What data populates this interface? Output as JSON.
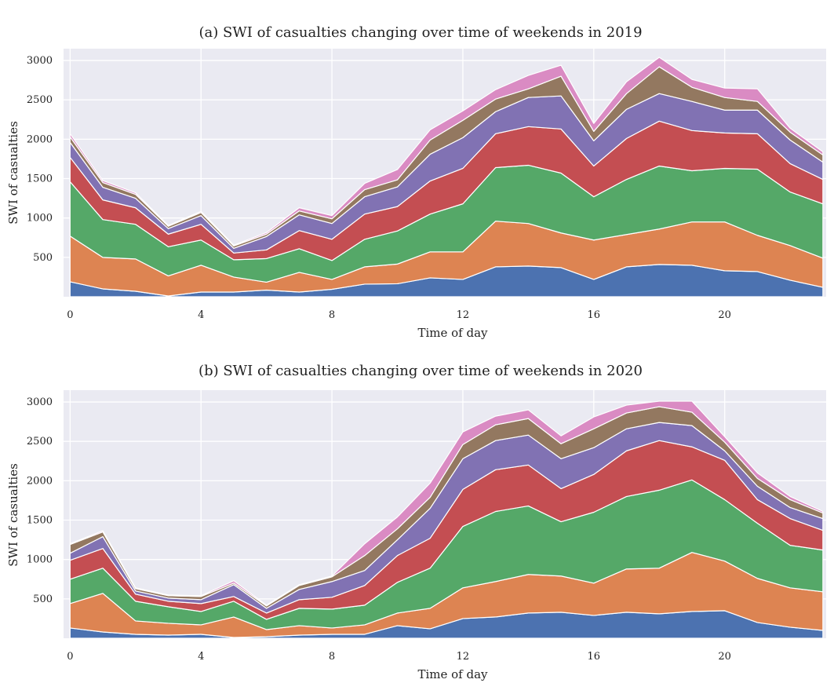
{
  "chart_data": [
    {
      "type": "area",
      "stacked": true,
      "title": "(a) SWI of casualties changing over time of weekends in 2019",
      "xlabel": "Time of day",
      "ylabel": "SWI of casualties",
      "xlim": [
        -0.2,
        23.1
      ],
      "ylim": [
        0,
        3150
      ],
      "xticks": [
        0,
        4,
        8,
        12,
        16,
        20
      ],
      "yticks": [
        500,
        1000,
        1500,
        2000,
        2500,
        3000
      ],
      "grid": true,
      "x": [
        0,
        1,
        2,
        3,
        4,
        5,
        6,
        7,
        8,
        9,
        10,
        11,
        12,
        13,
        14,
        15,
        16,
        17,
        18,
        19,
        20,
        21,
        22,
        23
      ],
      "series": [
        {
          "color": "#4c72b0",
          "values": [
            190,
            100,
            70,
            10,
            60,
            60,
            85,
            60,
            95,
            160,
            165,
            240,
            220,
            380,
            390,
            370,
            220,
            380,
            410,
            400,
            330,
            320,
            210,
            120
          ]
        },
        {
          "color": "#dd8452",
          "values": [
            580,
            400,
            410,
            255,
            340,
            190,
            100,
            250,
            125,
            220,
            250,
            330,
            350,
            580,
            540,
            440,
            500,
            410,
            450,
            550,
            620,
            460,
            440,
            370
          ]
        },
        {
          "color": "#55a868",
          "values": [
            690,
            480,
            440,
            370,
            320,
            220,
            300,
            300,
            240,
            350,
            420,
            480,
            610,
            680,
            740,
            760,
            550,
            700,
            800,
            650,
            680,
            840,
            680,
            690
          ]
        },
        {
          "color": "#c44e52",
          "values": [
            310,
            250,
            210,
            160,
            200,
            85,
            110,
            230,
            270,
            320,
            310,
            420,
            450,
            430,
            490,
            560,
            390,
            520,
            570,
            510,
            450,
            450,
            360,
            310
          ]
        },
        {
          "color": "#8172b3",
          "values": [
            190,
            160,
            120,
            70,
            110,
            60,
            170,
            200,
            200,
            220,
            250,
            340,
            390,
            280,
            370,
            420,
            320,
            370,
            350,
            370,
            290,
            300,
            300,
            220
          ]
        },
        {
          "color": "#937860",
          "values": [
            70,
            60,
            50,
            30,
            40,
            30,
            30,
            50,
            60,
            90,
            90,
            180,
            220,
            160,
            110,
            250,
            120,
            200,
            340,
            180,
            160,
            110,
            100,
            90
          ]
        },
        {
          "color": "#da8bc3",
          "values": [
            40,
            25,
            20,
            10,
            15,
            10,
            20,
            40,
            40,
            80,
            130,
            130,
            120,
            120,
            170,
            140,
            100,
            150,
            120,
            100,
            120,
            160,
            50,
            40
          ]
        }
      ]
    },
    {
      "type": "area",
      "stacked": true,
      "title": "(b) SWI of casualties changing over time of weekends in 2020",
      "xlabel": "Time of day",
      "ylabel": "SWI of casualties",
      "xlim": [
        -0.2,
        23.1
      ],
      "ylim": [
        0,
        3150
      ],
      "xticks": [
        0,
        4,
        8,
        12,
        16,
        20
      ],
      "yticks": [
        500,
        1000,
        1500,
        2000,
        2500,
        3000
      ],
      "grid": true,
      "x": [
        0,
        1,
        2,
        3,
        4,
        5,
        6,
        7,
        8,
        9,
        10,
        11,
        12,
        13,
        14,
        15,
        16,
        17,
        18,
        19,
        20,
        21,
        22,
        23
      ],
      "series": [
        {
          "color": "#4c72b0",
          "values": [
            130,
            80,
            50,
            40,
            50,
            10,
            20,
            40,
            50,
            50,
            160,
            120,
            250,
            270,
            320,
            330,
            290,
            330,
            310,
            340,
            350,
            200,
            140,
            100
          ]
        },
        {
          "color": "#dd8452",
          "values": [
            310,
            490,
            170,
            150,
            120,
            260,
            90,
            120,
            80,
            120,
            160,
            260,
            390,
            450,
            490,
            460,
            410,
            550,
            580,
            750,
            630,
            560,
            500,
            490
          ]
        },
        {
          "color": "#55a868",
          "values": [
            310,
            320,
            250,
            210,
            170,
            200,
            130,
            220,
            240,
            250,
            390,
            510,
            780,
            890,
            870,
            690,
            900,
            920,
            990,
            920,
            780,
            700,
            540,
            530
          ]
        },
        {
          "color": "#c44e52",
          "values": [
            240,
            250,
            90,
            70,
            100,
            60,
            80,
            110,
            150,
            250,
            340,
            380,
            470,
            530,
            520,
            420,
            480,
            580,
            630,
            420,
            500,
            300,
            340,
            250
          ]
        },
        {
          "color": "#8172b3",
          "values": [
            90,
            150,
            40,
            40,
            50,
            150,
            60,
            130,
            200,
            190,
            200,
            380,
            390,
            370,
            380,
            380,
            340,
            280,
            230,
            270,
            120,
            170,
            140,
            150
          ]
        },
        {
          "color": "#937860",
          "values": [
            110,
            60,
            30,
            30,
            40,
            20,
            30,
            50,
            60,
            190,
            140,
            140,
            180,
            200,
            210,
            190,
            240,
            200,
            200,
            170,
            110,
            100,
            100,
            70
          ]
        },
        {
          "color": "#da8bc3",
          "values": [
            10,
            15,
            10,
            10,
            10,
            30,
            10,
            10,
            10,
            150,
            150,
            180,
            160,
            110,
            110,
            100,
            150,
            100,
            70,
            140,
            70,
            70,
            40,
            20
          ]
        }
      ]
    }
  ]
}
